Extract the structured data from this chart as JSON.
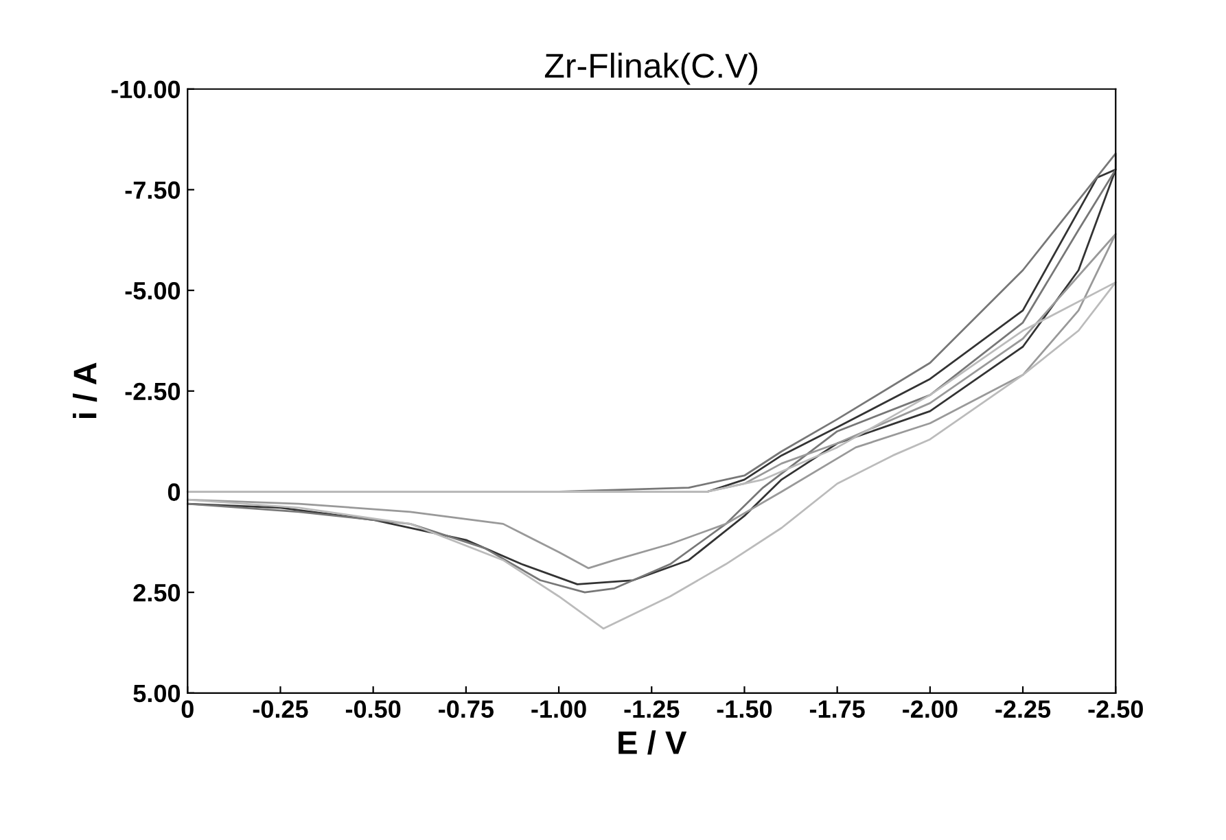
{
  "chart_data": {
    "type": "line",
    "title": "Zr-Flinak(C.V)",
    "xlabel": "E / V",
    "ylabel": "i / A",
    "xlim": [
      0,
      -2.5
    ],
    "ylim": [
      5,
      -10
    ],
    "xticks": [
      0,
      {
        "value": -0.25,
        "label": "-0.25"
      },
      {
        "value": -0.5,
        "label": "-0.50"
      },
      {
        "value": -0.75,
        "label": "-0.75"
      },
      {
        "value": -1,
        "label": "-1.00"
      },
      {
        "value": -1.25,
        "label": "-1.25"
      },
      {
        "value": -1.5,
        "label": "-1.50"
      },
      {
        "value": -1.75,
        "label": "-1.75"
      },
      {
        "value": -2,
        "label": "-2.00"
      },
      {
        "value": -2.25,
        "label": "-2.25"
      },
      {
        "value": -2.5,
        "label": "-2.50"
      }
    ],
    "yticks": [
      {
        "value": -10,
        "label": "-10.00"
      },
      {
        "value": -7.5,
        "label": "-7.50"
      },
      {
        "value": -5,
        "label": "-5.00"
      },
      {
        "value": -2.5,
        "label": "-2.50"
      },
      0,
      {
        "value": 2.5,
        "label": "2.50"
      },
      {
        "value": 5,
        "label": "5.00"
      }
    ],
    "grid": false,
    "legend": false,
    "marker": "none",
    "line_style": "solid",
    "series": [
      {
        "color": "#333333",
        "x": [
          0,
          -0.5,
          -1,
          -1.4,
          -1.5,
          -1.6,
          -1.75,
          -2,
          -2.25,
          -2.45,
          -2.5,
          -2.4,
          -2.25,
          -2,
          -1.75,
          -1.6,
          -1.5,
          -1.35,
          -1.2,
          -1.05,
          -0.9,
          -0.75,
          -0.5,
          -0.25,
          0
        ],
        "values": [
          0,
          0,
          0,
          0,
          -0.3,
          -0.9,
          -1.6,
          -2.8,
          -4.5,
          -7.8,
          -8.0,
          -5.5,
          -3.6,
          -2.0,
          -1.2,
          -0.3,
          0.6,
          1.7,
          2.2,
          2.3,
          1.8,
          1.2,
          0.7,
          0.4,
          0.3
        ]
      },
      {
        "color": "#777777",
        "x": [
          0,
          -0.5,
          -1,
          -1.35,
          -1.5,
          -1.6,
          -1.75,
          -2,
          -2.25,
          -2.5,
          -2.5,
          -2.4,
          -2.25,
          -2,
          -1.75,
          -1.55,
          -1.45,
          -1.3,
          -1.15,
          -1.07,
          -0.95,
          -0.8,
          -0.6,
          -0.3,
          0
        ],
        "values": [
          0,
          0,
          0,
          -0.1,
          -0.4,
          -1.0,
          -1.8,
          -3.2,
          -5.5,
          -8.4,
          -8.0,
          -6.5,
          -4.2,
          -2.4,
          -1.5,
          -0.1,
          0.8,
          1.8,
          2.4,
          2.5,
          2.2,
          1.4,
          0.8,
          0.5,
          0.3
        ]
      },
      {
        "color": "#999999",
        "x": [
          0,
          -0.5,
          -1,
          -1.4,
          -1.5,
          -1.6,
          -1.75,
          -2,
          -2.25,
          -2.5,
          -2.4,
          -2.25,
          -2,
          -1.8,
          -1.6,
          -1.45,
          -1.3,
          -1.15,
          -1.08,
          -1,
          -0.85,
          -0.6,
          -0.3,
          0
        ],
        "values": [
          0,
          0,
          0,
          0,
          -0.2,
          -0.7,
          -1.2,
          -2.2,
          -3.8,
          -6.4,
          -4.5,
          -2.9,
          -1.7,
          -1.1,
          0,
          0.8,
          1.3,
          1.7,
          1.9,
          1.5,
          0.8,
          0.5,
          0.3,
          0.2
        ]
      },
      {
        "color": "#bbbbbb",
        "x": [
          0,
          -0.5,
          -1,
          -1.4,
          -1.55,
          -1.75,
          -2,
          -2.25,
          -2.5,
          -2.4,
          -2.25,
          -2,
          -1.9,
          -1.75,
          -1.6,
          -1.45,
          -1.3,
          -1.12,
          -1,
          -0.85,
          -0.6,
          -0.3,
          0
        ],
        "values": [
          0,
          0,
          0,
          0,
          -0.3,
          -1.1,
          -2.4,
          -4.0,
          -5.2,
          -4.0,
          -2.9,
          -1.3,
          -0.9,
          -0.2,
          0.9,
          1.8,
          2.6,
          3.4,
          2.6,
          1.7,
          0.8,
          0.4,
          0.2
        ]
      }
    ]
  }
}
